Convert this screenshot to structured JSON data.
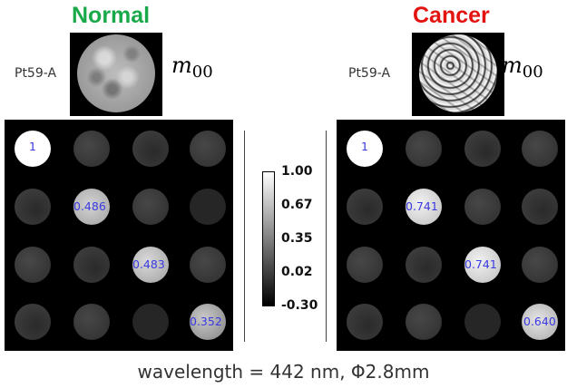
{
  "titles": {
    "normal": "Normal",
    "cancer": "Cancer"
  },
  "sample_id": {
    "left": "Pt59-A",
    "right": "Pt59-A"
  },
  "element_label": {
    "base": "m",
    "sub": "00"
  },
  "colorbar": {
    "ticks": [
      "1.00",
      "0.67",
      "0.35",
      "0.02",
      "-0.30"
    ],
    "gradient_top": "#ffffff",
    "gradient_bottom": "#000000"
  },
  "panels": {
    "normal": {
      "values": {
        "m11": "1",
        "m22": "0.486",
        "m33": "0.483",
        "m44": "0.352"
      }
    },
    "cancer": {
      "values": {
        "m11": "1",
        "m22": "0.741",
        "m33": "0.741",
        "m44": "0.640"
      }
    }
  },
  "caption": "wavelength = 442 nm, Φ2.8mm",
  "colors": {
    "normal_title": "#1aa94a",
    "cancer_title": "#e3130f",
    "value_text": "#3a3ae0"
  }
}
